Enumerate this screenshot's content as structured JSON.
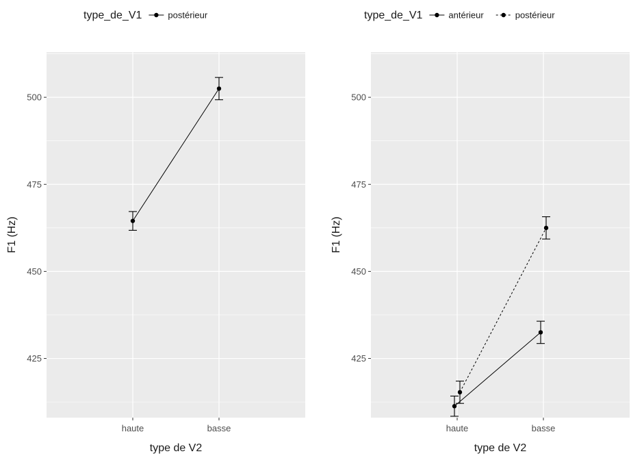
{
  "chart_data": [
    {
      "type": "line",
      "title": "",
      "xlabel": "type de V2",
      "ylabel": "F1 (Hz)",
      "categories": [
        "haute",
        "basse"
      ],
      "ylim": [
        408,
        513
      ],
      "yticks": [
        425,
        450,
        475,
        500
      ],
      "grid": true,
      "legend": {
        "title": "type_de_V1",
        "position": "top"
      },
      "series": [
        {
          "name": "postérieur",
          "linestyle": "solid",
          "values": [
            464.5,
            502.5
          ],
          "err_low": [
            461.8,
            499.3
          ],
          "err_high": [
            467.2,
            505.7
          ]
        }
      ]
    },
    {
      "type": "line",
      "title": "",
      "xlabel": "type de V2",
      "ylabel": "F1 (Hz)",
      "categories": [
        "haute",
        "basse"
      ],
      "ylim": [
        408,
        513
      ],
      "yticks": [
        425,
        450,
        475,
        500
      ],
      "grid": true,
      "legend": {
        "title": "type_de_V1",
        "position": "top"
      },
      "series": [
        {
          "name": "antérieur",
          "linestyle": "solid",
          "values": [
            411.3,
            432.5
          ],
          "err_low": [
            408.4,
            429.3
          ],
          "err_high": [
            414.2,
            435.7
          ]
        },
        {
          "name": "postérieur",
          "linestyle": "dotted",
          "values": [
            415.3,
            462.5
          ],
          "err_low": [
            412.1,
            459.3
          ],
          "err_high": [
            418.5,
            465.7
          ]
        }
      ]
    }
  ]
}
